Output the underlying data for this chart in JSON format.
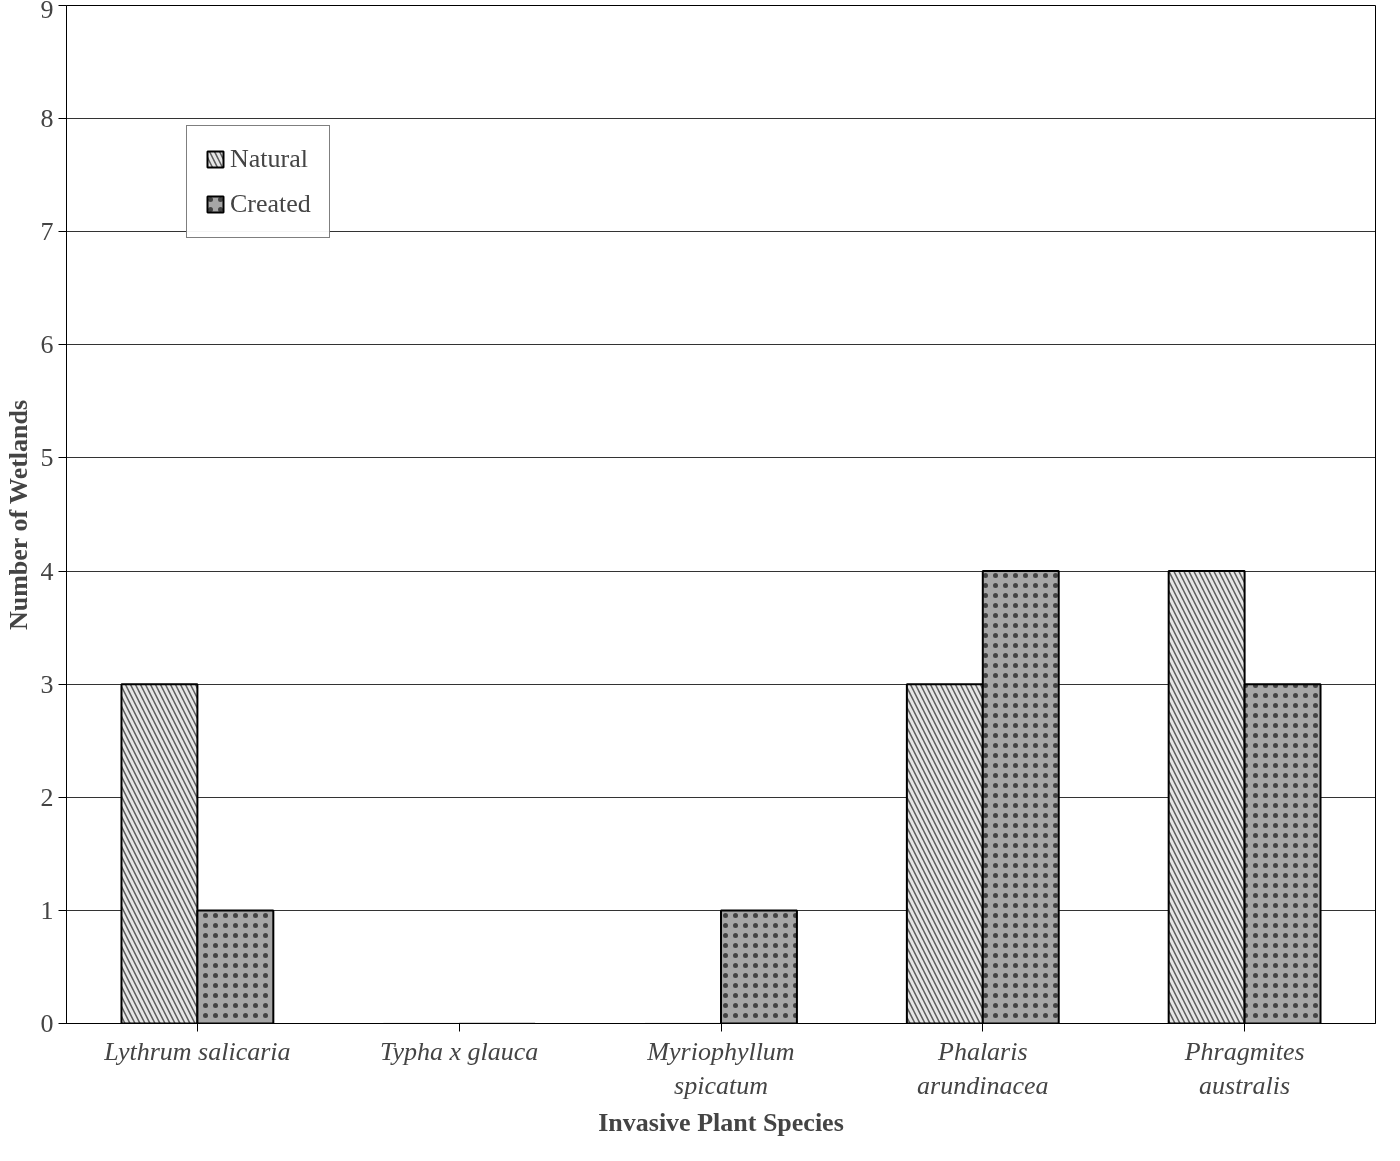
{
  "chart_data": {
    "type": "bar",
    "xlabel": "Invasive Plant Species",
    "ylabel": "Number of Wetlands",
    "categories": [
      "Lythrum salicaria",
      "Typha x glauca",
      "Myriophyllum spicatum",
      "Phalaris arundinacea",
      "Phragmites australis"
    ],
    "series": [
      {
        "name": "Natural",
        "color": "#e6e6e6",
        "values": [
          3,
          0,
          0,
          3,
          4
        ]
      },
      {
        "name": "Created",
        "color": "#a6a6a6",
        "values": [
          1,
          0,
          1,
          4,
          3
        ]
      }
    ],
    "ylim": [
      0,
      9
    ],
    "yticks": [
      0,
      1,
      2,
      3,
      4,
      5,
      6,
      7,
      8,
      9
    ],
    "grid": "y",
    "legend": "top left"
  }
}
